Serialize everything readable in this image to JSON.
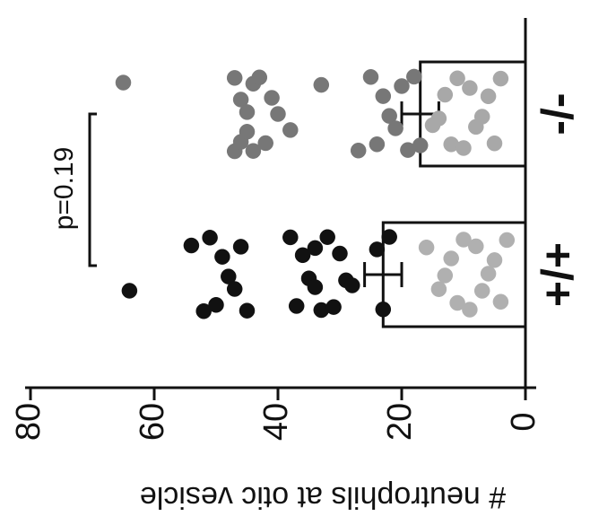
{
  "chart_data": {
    "type": "scatter",
    "orientation": "rotated-90-ccw",
    "ylabel": "# neutrophils at otic vesicle",
    "ylim": [
      0,
      80
    ],
    "yticks": [
      0,
      20,
      40,
      60,
      80
    ],
    "categories": [
      "+/+",
      "-/-"
    ],
    "annotation": "p=0.19",
    "bars": [
      {
        "category": "+/+",
        "mean": 23,
        "sem_low": 20,
        "sem_high": 26
      },
      {
        "category": "-/-",
        "mean": 17,
        "sem_low": 14,
        "sem_high": 20
      }
    ],
    "series": [
      {
        "category": "+/+",
        "color": "#111111",
        "values": [
          64,
          54,
          52,
          51,
          50,
          49,
          48,
          47,
          46,
          45,
          38,
          37,
          36,
          35,
          34,
          34,
          33,
          32,
          31,
          30,
          29,
          28,
          24,
          23,
          22
        ]
      },
      {
        "category": "+/+",
        "color": "#b0b0b0",
        "values": [
          16,
          14,
          13,
          12,
          11,
          10,
          9,
          8,
          7,
          6,
          5,
          4,
          3
        ]
      },
      {
        "category": "-/-",
        "color": "#777777",
        "values": [
          65,
          47,
          47,
          46,
          46,
          45,
          45,
          44,
          44,
          43,
          42,
          41,
          40,
          38,
          33,
          27,
          25,
          24,
          23,
          22,
          21,
          20,
          19,
          18,
          17
        ]
      },
      {
        "category": "-/-",
        "color": "#a8a8a8",
        "values": [
          15,
          14,
          13,
          12,
          11,
          10,
          9,
          8,
          7,
          6,
          5,
          4
        ]
      }
    ]
  }
}
